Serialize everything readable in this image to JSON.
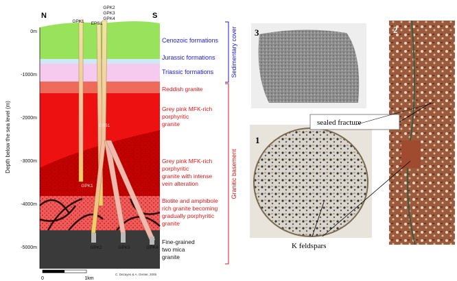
{
  "cross_section": {
    "north": "N",
    "south": "S",
    "y_axis_label": "Depth below the sea level (m)",
    "depth_ticks": [
      "0m",
      "-1000m",
      "-2000m",
      "-3000m",
      "-4000m",
      "-5000m"
    ],
    "wells_top": {
      "gpk1": "GPK1",
      "eps1": "EPS1",
      "gpk2": "GPK2",
      "gpk3": "GPK3",
      "gpk4": "GPK4"
    },
    "wells_inside": {
      "eps1": "EPS1",
      "gpk1": "GPK1"
    },
    "wells_bottom": {
      "gpk2": "GPK2",
      "gpk3": "GPK3",
      "gpk4": "GPK4"
    },
    "formations": {
      "cenozoic": "Cenozoic formations",
      "jurassic": "Jurassic formations",
      "triassic": "Triassic formations",
      "reddish": "Reddish granite",
      "mfk": [
        "Grey pink MFK-rich",
        "porphyritic",
        "granite"
      ],
      "mfk_altered": [
        "Grey pink MFK-rich",
        "porphyritic",
        "granite with intense",
        "vein alteration"
      ],
      "biotite": [
        "Biotite and amphibole",
        "rich granite becoming",
        "gradually porphyritic",
        "granite"
      ],
      "fine": [
        "Fine-grained",
        "two mica",
        "granite"
      ]
    },
    "groups": {
      "sedimentary": "Sedimentary cover",
      "granitic": "Granitic basement"
    },
    "scale": {
      "start": "0",
      "end": "1km"
    },
    "credit": "C. Dezayes & A. Genter, 2005"
  },
  "photos": {
    "photo3": "3",
    "photo2": "2",
    "photo1": "1",
    "sealed_fracture": "sealed fracture",
    "k_feldspars": "K feldspars"
  }
}
